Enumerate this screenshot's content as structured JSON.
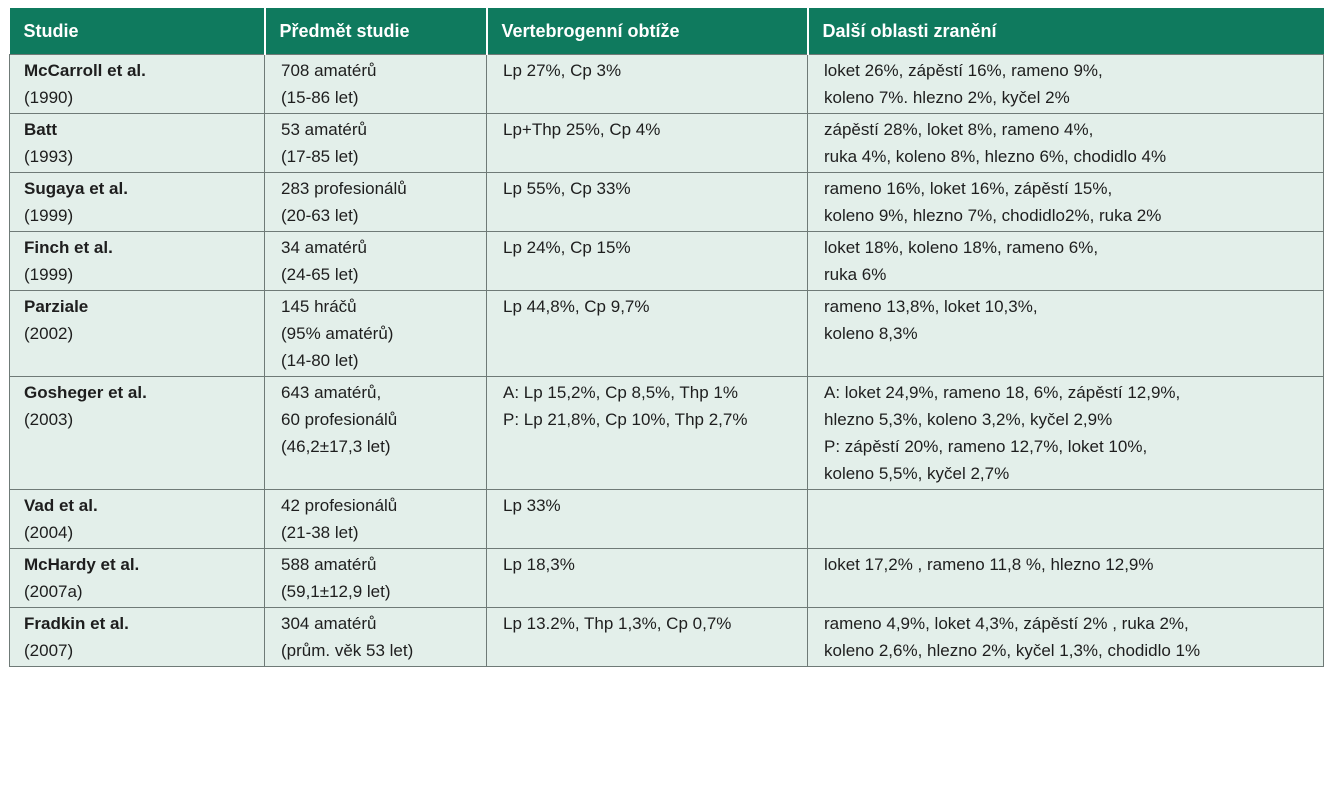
{
  "headers": [
    "Studie",
    "Předmět studie",
    "Vertebrogenní obtíže",
    "Další oblasti zranění"
  ],
  "rows": [
    {
      "study": "McCarroll et al.",
      "year": "(1990)",
      "subject": [
        "708 amatérů",
        "(15-86 let)"
      ],
      "vertebro": [
        "Lp 27%, Cp 3%"
      ],
      "other": [
        "loket 26%, zápěstí 16%, rameno 9%,",
        "koleno 7%. hlezno 2%, kyčel 2%"
      ]
    },
    {
      "study": "Batt",
      "year": "(1993)",
      "subject": [
        "53 amatérů",
        "(17-85 let)"
      ],
      "vertebro": [
        "Lp+Thp 25%, Cp 4%"
      ],
      "other": [
        "zápěstí 28%, loket 8%, rameno 4%,",
        "ruka 4%, koleno 8%, hlezno 6%, chodidlo 4%"
      ]
    },
    {
      "study": "Sugaya et al.",
      "year": "(1999)",
      "subject": [
        "283 profesionálů",
        "(20-63 let)"
      ],
      "vertebro": [
        "Lp 55%, Cp 33%"
      ],
      "other": [
        "rameno 16%, loket 16%, zápěstí 15%,",
        "koleno 9%, hlezno 7%, chodidlo2%, ruka 2%"
      ]
    },
    {
      "study": "Finch et al.",
      "year": "(1999)",
      "subject": [
        "34 amatérů",
        "(24-65 let)"
      ],
      "vertebro": [
        "Lp 24%, Cp 15%"
      ],
      "other": [
        "loket 18%, koleno 18%, rameno 6%,",
        "ruka 6%"
      ]
    },
    {
      "study": "Parziale",
      "year": "(2002)",
      "subject": [
        "145 hráčů",
        "(95% amatérů)",
        "(14-80 let)"
      ],
      "vertebro": [
        "Lp 44,8%, Cp 9,7%"
      ],
      "other": [
        "rameno 13,8%, loket 10,3%,",
        "koleno 8,3%"
      ]
    },
    {
      "study": "Gosheger et al.",
      "year": "(2003)",
      "subject": [
        "643 amatérů,",
        "60 profesionálů",
        "(46,2±17,3 let)"
      ],
      "vertebro": [
        "A: Lp 15,2%, Cp 8,5%, Thp 1%",
        "P: Lp 21,8%, Cp 10%, Thp 2,7%"
      ],
      "other": [
        "A: loket 24,9%, rameno 18, 6%, zápěstí 12,9%,",
        "hlezno 5,3%, koleno 3,2%, kyčel 2,9%",
        "P: zápěstí 20%, rameno 12,7%, loket 10%,",
        "koleno 5,5%, kyčel 2,7%"
      ]
    },
    {
      "study": "Vad et al.",
      "year": "(2004)",
      "subject": [
        "42 profesionálů",
        "(21-38 let)"
      ],
      "vertebro": [
        "Lp 33%"
      ],
      "other": []
    },
    {
      "study": "McHardy et al.",
      "year": "(2007a)",
      "subject": [
        "588 amatérů",
        "(59,1±12,9 let)"
      ],
      "vertebro": [
        "Lp 18,3%"
      ],
      "other": [
        "loket 17,2% , rameno 11,8 %, hlezno 12,9%"
      ]
    },
    {
      "study": "Fradkin et al.",
      "year": "(2007)",
      "subject": [
        "304 amatérů",
        "(prům. věk 53 let)"
      ],
      "vertebro": [
        "Lp 13.2%, Thp 1,3%, Cp 0,7%"
      ],
      "other": [
        "rameno 4,9%, loket 4,3%, zápěstí 2% , ruka 2%,",
        "koleno 2,6%, hlezno 2%, kyčel 1,3%, chodidlo 1%"
      ]
    }
  ]
}
